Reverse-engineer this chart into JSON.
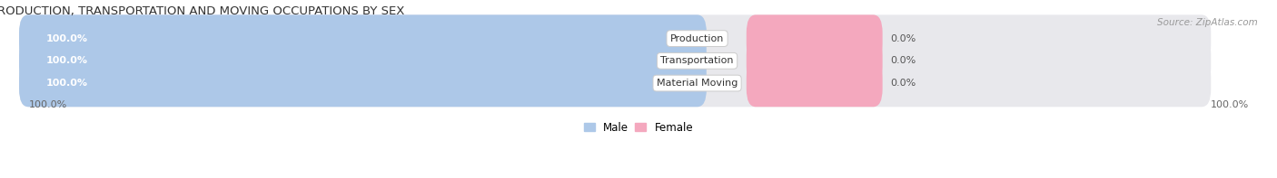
{
  "title": "PRODUCTION, TRANSPORTATION AND MOVING OCCUPATIONS BY SEX",
  "source": "Source: ZipAtlas.com",
  "categories": [
    "Production",
    "Transportation",
    "Material Moving"
  ],
  "male_values": [
    100.0,
    100.0,
    100.0
  ],
  "female_values": [
    0.0,
    0.0,
    0.0
  ],
  "male_color": "#adc8e8",
  "female_color": "#f4a8be",
  "bar_bg_color": "#e8e8ec",
  "background_color": "#ffffff",
  "male_label": "Male",
  "female_label": "Female",
  "title_fontsize": 9.5,
  "source_fontsize": 7.5,
  "tick_fontsize": 8,
  "label_fontsize": 8,
  "value_fontsize": 8
}
